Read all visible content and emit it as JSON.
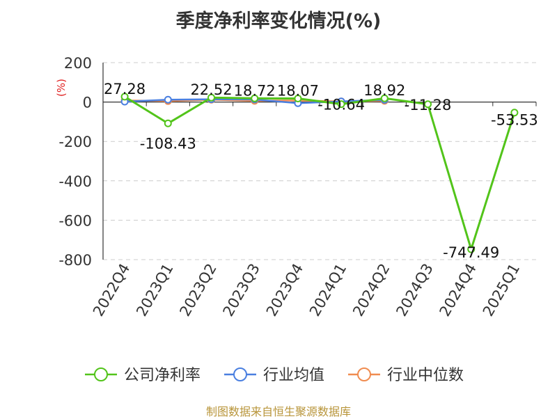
{
  "title": "季度净利率变化情况(%)",
  "source": "制图数据来自恒生聚源数据库",
  "chart_data": {
    "type": "line",
    "title": "季度净利率变化情况(%)",
    "ylabel": "(%)",
    "ylim": [
      -800,
      200
    ],
    "yticks": [
      200,
      0,
      -200,
      -400,
      -600,
      -800
    ],
    "categories": [
      "2022Q4",
      "2023Q1",
      "2023Q2",
      "2023Q3",
      "2023Q4",
      "2024Q1",
      "2024Q2",
      "2024Q3",
      "2024Q4",
      "2025Q1"
    ],
    "series": [
      {
        "name": "公司净利率",
        "color": "#52c41a",
        "values": [
          27.28,
          -108.43,
          22.52,
          18.72,
          18.07,
          -10.64,
          18.92,
          -11.28,
          -747.49,
          -53.53
        ],
        "labels": [
          "27.28",
          "-108.43",
          "22.52",
          "18.72",
          "18.07",
          "-10.64",
          "18.92",
          "-11.28",
          "-747.49",
          "-53.53"
        ]
      },
      {
        "name": "行业均值",
        "color": "#4a7fe0",
        "values": [
          2,
          12,
          14,
          13,
          -6,
          3,
          11,
          null,
          null,
          null
        ]
      },
      {
        "name": "行业中位数",
        "color": "#f08c50",
        "values": [
          8,
          5,
          12,
          6,
          8,
          3,
          6,
          null,
          null,
          null
        ]
      }
    ],
    "grid": true,
    "legend_position": "bottom"
  }
}
